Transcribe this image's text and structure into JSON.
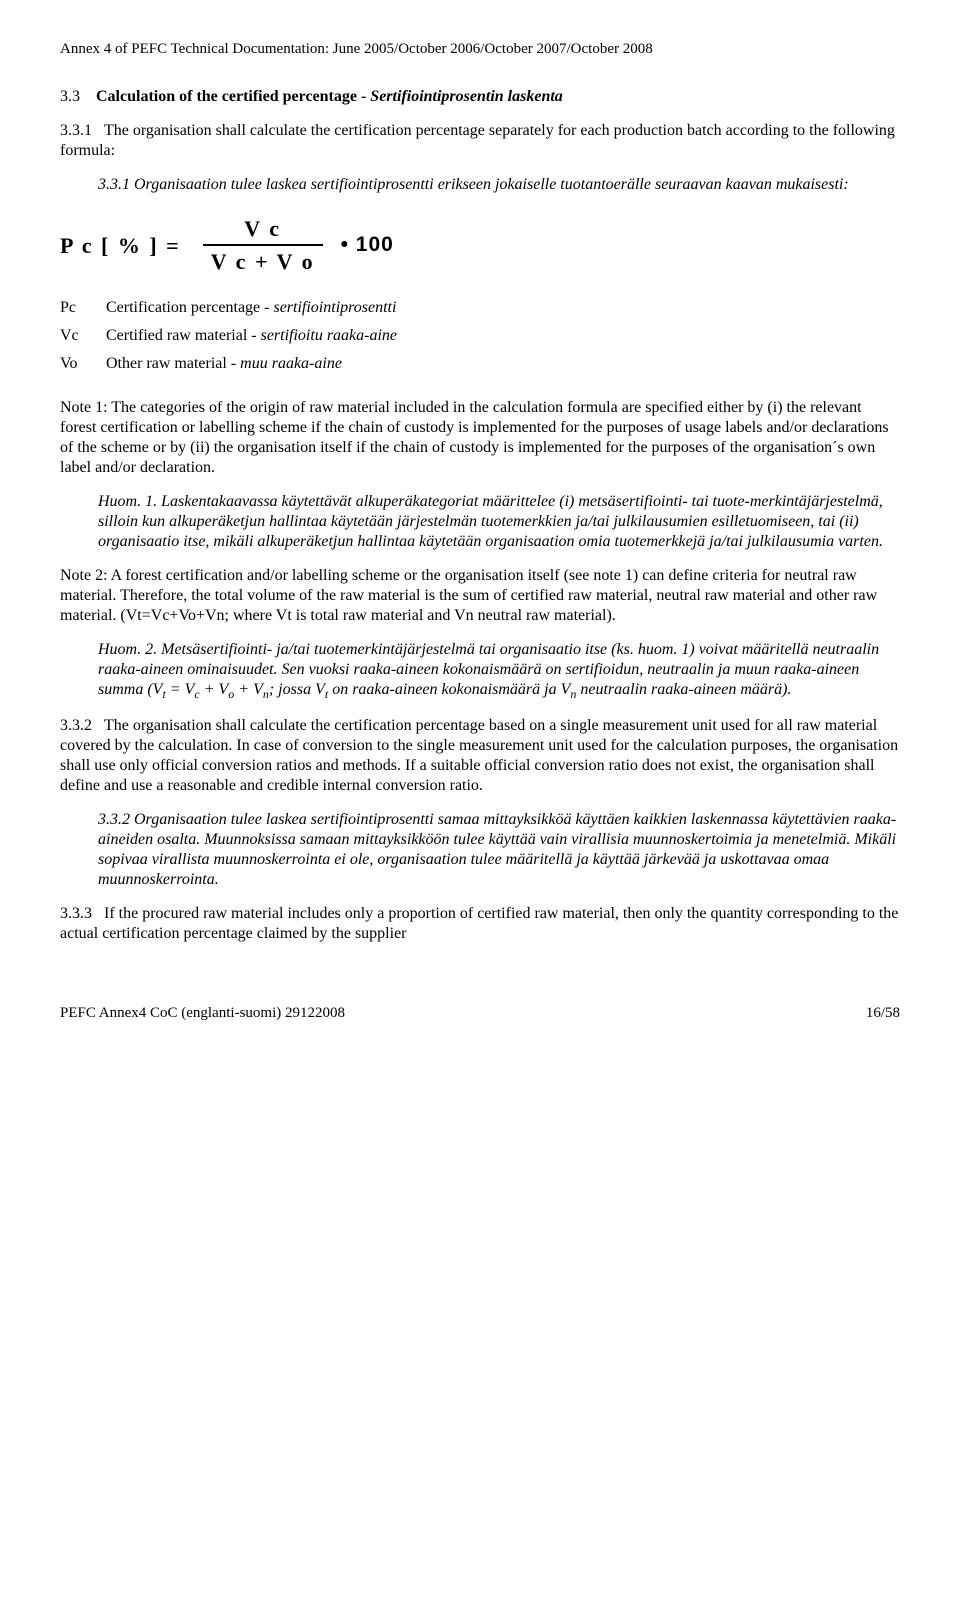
{
  "header": "Annex 4 of PEFC Technical Documentation: June 2005/October 2006/October 2007/October 2008",
  "s33": {
    "num": "3.3",
    "title_en": "Calculation of the certified percentage  -  ",
    "title_fi": "Sertifiointiprosentin laskenta"
  },
  "s331": {
    "num": "3.3.1",
    "en": "The organisation shall calculate the certification percentage separately for each production batch according to the following formula:",
    "fi_num": "3.3.1 ",
    "fi": "Organisaation tulee laskea sertifiointiprosentti erikseen jokaiselle tuotantoerälle seuraavan kaavan mukaisesti:"
  },
  "formula": {
    "lhs": "P c  [ % ] =",
    "top": "V c",
    "bot": "V c + V o",
    "mult": "•  100"
  },
  "defs": {
    "pc_sym": "Pc",
    "pc_en": "Certification percentage  -  ",
    "pc_fi": "sertifiointiprosentti",
    "vc_sym": "Vc",
    "vc_en": "Certified raw material  -  ",
    "vc_fi": "sertifioitu raaka-aine",
    "vo_sym": "Vo",
    "vo_en": "Other raw material  -  ",
    "vo_fi": "muu raaka-aine"
  },
  "note1": {
    "en": "Note 1: The categories of the origin of raw material included in the calculation formula are specified either by (i) the relevant forest certification or labelling scheme if the chain of custody is implemented for the purposes of usage labels and/or declarations of the scheme or by (ii) the organisation itself if the chain of custody is implemented for the purposes of the organisation´s own label and/or declaration.",
    "fi": "Huom. 1. Laskentakaavassa käytettävät alkuperäkategoriat määrittelee (i) metsäsertifiointi- tai tuote-merkintäjärjestelmä, silloin kun alkuperäketjun hallintaa käytetään järjestelmän tuotemerkkien ja/tai julkilausumien esilletuomiseen, tai (ii) organisaatio itse, mikäli alkuperäketjun hallintaa käytetään organisaation omia tuotemerkkejä ja/tai julkilausumia varten."
  },
  "note2": {
    "en": "Note 2: A forest certification and/or labelling scheme or the organisation itself (see note 1) can define criteria for neutral raw material. Therefore, the total volume of the raw material is the sum of certified raw material, neutral raw material and other raw material. (Vt=Vc+Vo+Vn; where Vt is total raw material and Vn neutral raw material).",
    "fi_a": "Huom. 2. Metsäsertifiointi- ja/tai tuotemerkintäjärjestelmä tai organisaatio itse (ks. huom. 1) voivat määritellä neutraalin raaka-aineen ominaisuudet. Sen vuoksi raaka-aineen kokonaismäärä on sertifioidun, neutraalin ja muun raaka-aineen summa (V",
    "fi_t": "t",
    "fi_b": " = V",
    "fi_c": "c",
    "fi_d": " + V",
    "fi_o": "o",
    "fi_e": " + V",
    "fi_n": "n",
    "fi_f": "; jossa V",
    "fi_g": " on raaka-aineen kokonaismäärä ja V",
    "fi_h": " neutraalin raaka-aineen määrä)."
  },
  "s332": {
    "num": "3.3.2",
    "en": "The organisation shall calculate the certification percentage based on a single measurement unit used for all raw material covered by the calculation. In case of conversion to the single measurement unit used for the calculation purposes, the organisation shall use only official conversion ratios and methods. If a suitable official conversion ratio does not exist, the organisation shall define and use a reasonable and credible internal conversion ratio.",
    "fi_num": "3.3.2 ",
    "fi": "Organisaation tulee laskea sertifiointiprosentti samaa mittayksikköä käyttäen kaikkien laskennassa käytettävien raaka-aineiden osalta. Muunnoksissa samaan mittayksikköön tulee käyttää vain virallisia muunnoskertoimia ja menetelmiä. Mikäli sopivaa virallista muunnoskerrointa ei ole, organisaation tulee määritellä ja käyttää järkevää ja uskottavaa omaa muunnoskerrointa."
  },
  "s333": {
    "num": "3.3.3",
    "en": "If the procured raw material includes only a proportion of certified raw material, then only the quantity corresponding to the actual certification percentage claimed by the supplier"
  },
  "footer": {
    "left": "PEFC Annex4 CoC (englanti-suomi) 29122008",
    "right": "16/58"
  }
}
